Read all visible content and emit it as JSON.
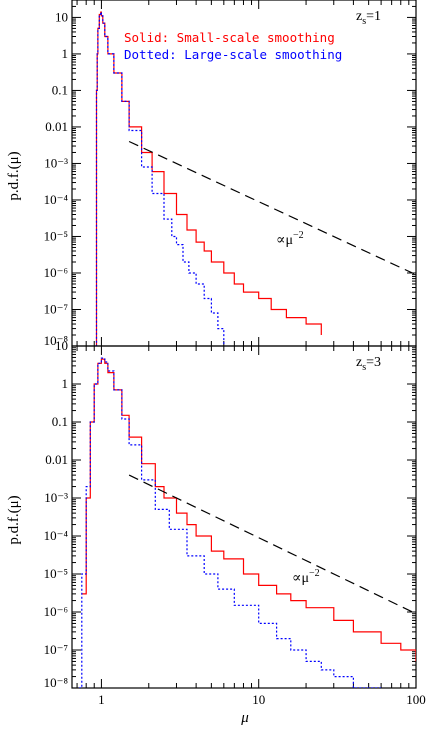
{
  "chart_data": [
    {
      "type": "line",
      "panel_label": "z_s=1",
      "panel_label_main": "z",
      "panel_label_sub": "s",
      "panel_label_rest": "=1",
      "xlabel": "",
      "ylabel": "p.d.f.(μ)",
      "xscale": "log",
      "yscale": "log",
      "xlim": [
        0.65,
        100
      ],
      "ylim": [
        1e-08,
        30
      ],
      "x_ticks": [
        1,
        10,
        100
      ],
      "y_tick_labels": [
        "10",
        "1",
        "0.1",
        "0.01",
        "10⁻³",
        "10⁻⁴",
        "10⁻⁵",
        "10⁻⁶",
        "10⁻⁷",
        "10⁻⁸"
      ],
      "y_tick_values": [
        10,
        1,
        0.1,
        0.01,
        0.001,
        0.0001,
        1e-05,
        1e-06,
        1e-07,
        1e-08
      ],
      "legend": [
        {
          "text": "Solid: Small-scale smoothing",
          "color": "#ff0000"
        },
        {
          "text": "Dotted: Large-scale smoothing",
          "color": "#0000ff"
        }
      ],
      "annotation": "∝μ⁻²",
      "annotation_main": "∝μ",
      "annotation_sup": "−2",
      "series": [
        {
          "name": "Solid: Small-scale smoothing",
          "color": "#ff0000",
          "style": "solid",
          "x": [
            0.92,
            0.93,
            0.94,
            0.95,
            0.97,
            0.99,
            1.0,
            1.02,
            1.05,
            1.1,
            1.2,
            1.35,
            1.5,
            1.8,
            2.1,
            2.5,
            3.0,
            3.5,
            4.0,
            4.5,
            5.0,
            6.0,
            7.0,
            8.0,
            10.0,
            12.0,
            15.0,
            20.0,
            25.0
          ],
          "y": [
            1e-08,
            0.1,
            1.0,
            5.0,
            12.0,
            14.0,
            11.0,
            7.0,
            3.0,
            1.0,
            0.3,
            0.05,
            0.01,
            0.002,
            0.0006,
            0.00015,
            4e-05,
            1.5e-05,
            7e-06,
            4e-06,
            2e-06,
            1e-06,
            5e-07,
            3e-07,
            2e-07,
            1e-07,
            6e-08,
            4e-08,
            2e-08
          ]
        },
        {
          "name": "Dotted: Large-scale smoothing",
          "color": "#0000ff",
          "style": "dotted",
          "x": [
            0.92,
            0.93,
            0.94,
            0.95,
            0.97,
            0.99,
            1.0,
            1.02,
            1.05,
            1.1,
            1.2,
            1.35,
            1.5,
            1.8,
            2.1,
            2.5,
            2.8,
            3.0,
            3.3,
            3.6,
            4.0,
            4.5,
            5.0,
            5.5,
            6.0
          ],
          "y": [
            1e-08,
            0.1,
            1.0,
            5.0,
            12.0,
            14.0,
            11.0,
            7.0,
            3.0,
            1.0,
            0.3,
            0.05,
            0.008,
            0.0008,
            0.00015,
            3e-05,
            1e-05,
            6e-06,
            2e-06,
            1e-06,
            5e-07,
            2e-07,
            8e-08,
            3e-08,
            1e-08
          ]
        },
        {
          "name": "",
          "color": "#000000",
          "style": "dashed",
          "x": [
            1.5,
            100
          ],
          "y": [
            0.004,
            9e-07
          ]
        }
      ]
    },
    {
      "type": "line",
      "panel_label": "z_s=3",
      "panel_label_main": "z",
      "panel_label_sub": "s",
      "panel_label_rest": "=3",
      "xlabel": "μ",
      "ylabel": "p.d.f.(μ)",
      "xscale": "log",
      "yscale": "log",
      "xlim": [
        0.65,
        100
      ],
      "ylim": [
        1e-08,
        10
      ],
      "x_ticks": [
        1,
        10,
        100
      ],
      "x_tick_labels": [
        "1",
        "10",
        "100"
      ],
      "y_tick_labels": [
        "10",
        "1",
        "0.1",
        "0.01",
        "10⁻³",
        "10⁻⁴",
        "10⁻⁵",
        "10⁻⁶",
        "10⁻⁷",
        "10⁻⁸"
      ],
      "y_tick_values": [
        10,
        1,
        0.1,
        0.01,
        0.001,
        0.0001,
        1e-05,
        1e-06,
        1e-07,
        1e-08
      ],
      "annotation": "∝μ⁻²",
      "annotation_main": "∝μ",
      "annotation_sup": "−2",
      "series": [
        {
          "name": "Solid: Small-scale smoothing",
          "color": "#ff0000",
          "style": "solid",
          "x": [
            0.75,
            0.8,
            0.85,
            0.9,
            0.95,
            1.0,
            1.05,
            1.1,
            1.2,
            1.35,
            1.5,
            1.8,
            2.2,
            2.5,
            3.0,
            3.5,
            4.0,
            5.0,
            6.0,
            8.0,
            10.0,
            13.0,
            16.0,
            20.0,
            30.0,
            40.0,
            60.0,
            80.0,
            100.0
          ],
          "y": [
            3e-06,
            0.001,
            0.1,
            1.0,
            3.5,
            4.5,
            3.5,
            2.0,
            0.7,
            0.15,
            0.04,
            0.008,
            0.002,
            0.001,
            0.0004,
            0.0002,
            0.0001,
            4e-05,
            2.5e-05,
            1e-05,
            5e-06,
            3e-06,
            2e-06,
            1.3e-06,
            6e-07,
            3e-07,
            1.5e-07,
            1e-07,
            5e-08
          ]
        },
        {
          "name": "Dotted: Large-scale smoothing",
          "color": "#0000ff",
          "style": "dotted",
          "x": [
            0.72,
            0.75,
            0.8,
            0.85,
            0.9,
            0.95,
            1.0,
            1.05,
            1.1,
            1.2,
            1.35,
            1.5,
            1.8,
            2.2,
            2.7,
            3.5,
            4.5,
            5.5,
            7.0,
            10.0,
            13.0,
            16.0,
            20.0,
            25.0,
            30.0,
            40.0,
            60.0
          ],
          "y": [
            1e-08,
            1e-05,
            0.002,
            0.1,
            1.0,
            3.5,
            4.8,
            3.8,
            2.2,
            0.7,
            0.12,
            0.025,
            0.003,
            0.0005,
            0.00015,
            3e-05,
            1e-05,
            4e-06,
            1.5e-06,
            5e-07,
            2e-07,
            1e-07,
            5e-08,
            3e-08,
            2e-08,
            1e-08,
            1e-08
          ]
        },
        {
          "name": "",
          "color": "#000000",
          "style": "dashed",
          "x": [
            1.5,
            100
          ],
          "y": [
            0.004,
            9e-07
          ]
        }
      ]
    }
  ]
}
